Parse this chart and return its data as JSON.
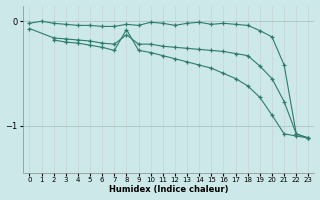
{
  "xlabel": "Humidex (Indice chaleur)",
  "ylabel": "",
  "bg_color": "#cce8e8",
  "line_color": "#2e7b6e",
  "grid_color": "#aacece",
  "xlim": [
    -0.5,
    23.5
  ],
  "ylim": [
    -1.45,
    0.15
  ],
  "yticks": [
    0,
    -1
  ],
  "xticks": [
    0,
    1,
    2,
    3,
    4,
    5,
    6,
    7,
    8,
    9,
    10,
    11,
    12,
    13,
    14,
    15,
    16,
    17,
    18,
    19,
    20,
    21,
    22,
    23
  ],
  "line1_x": [
    0,
    1,
    2,
    3,
    4,
    5,
    6,
    7,
    8,
    9,
    10,
    11,
    12,
    13,
    14,
    15,
    16,
    17,
    18,
    19,
    20,
    21,
    22,
    23
  ],
  "line1_y": [
    -0.02,
    0.0,
    -0.02,
    -0.03,
    -0.04,
    -0.04,
    -0.05,
    -0.05,
    -0.03,
    -0.04,
    -0.01,
    -0.02,
    -0.04,
    -0.02,
    -0.01,
    -0.03,
    -0.02,
    -0.03,
    -0.04,
    -0.09,
    -0.15,
    -0.42,
    -1.08,
    -1.12
  ],
  "line2_x": [
    0,
    2,
    3,
    4,
    5,
    6,
    7,
    8,
    9,
    10,
    11,
    12,
    13,
    14,
    15,
    16,
    17,
    18,
    19,
    20,
    21,
    22,
    23
  ],
  "line2_y": [
    -0.07,
    -0.16,
    -0.17,
    -0.18,
    -0.19,
    -0.21,
    -0.22,
    -0.13,
    -0.22,
    -0.22,
    -0.24,
    -0.25,
    -0.26,
    -0.27,
    -0.28,
    -0.29,
    -0.31,
    -0.33,
    -0.43,
    -0.55,
    -0.77,
    -1.08,
    -1.12
  ],
  "line3_x": [
    2,
    3,
    4,
    5,
    6,
    7,
    8,
    9,
    10,
    11,
    12,
    13,
    14,
    15,
    16,
    17,
    18,
    19,
    20,
    21,
    22,
    23
  ],
  "line3_y": [
    -0.18,
    -0.2,
    -0.21,
    -0.23,
    -0.25,
    -0.28,
    -0.08,
    -0.28,
    -0.3,
    -0.33,
    -0.36,
    -0.39,
    -0.42,
    -0.45,
    -0.5,
    -0.55,
    -0.62,
    -0.73,
    -0.9,
    -1.08,
    -1.1,
    -1.12
  ]
}
